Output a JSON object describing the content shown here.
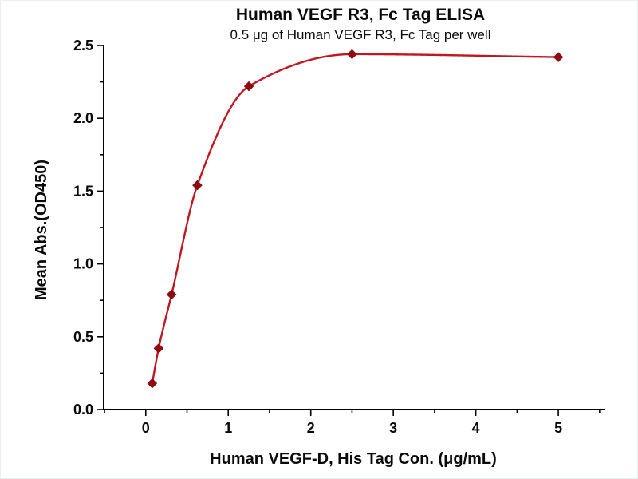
{
  "chart_data": {
    "type": "scatter",
    "title": "Human VEGF R3, Fc Tag ELISA",
    "subtitle": "0.5 μg of Human VEGF R3, Fc Tag per well",
    "xlabel": "Human VEGF-D, His Tag Con. (μg/mL)",
    "ylabel": "Mean Abs.(OD450)",
    "x": [
      0.078,
      0.156,
      0.313,
      0.625,
      1.25,
      2.5,
      5
    ],
    "y": [
      0.18,
      0.42,
      0.79,
      1.54,
      2.22,
      2.44,
      2.42
    ],
    "xlim": [
      -0.51,
      5.55
    ],
    "ylim": [
      0,
      2.5
    ],
    "x_ticks": [
      {
        "v": 0,
        "label": "0"
      },
      {
        "v": 1,
        "label": "1"
      },
      {
        "v": 2,
        "label": "2"
      },
      {
        "v": 3,
        "label": "3"
      },
      {
        "v": 4,
        "label": "4"
      },
      {
        "v": 5,
        "label": "5"
      }
    ],
    "y_ticks": [
      {
        "v": 0.0,
        "label": "0.0"
      },
      {
        "v": 0.5,
        "label": "0.5"
      },
      {
        "v": 1.0,
        "label": "1.0"
      },
      {
        "v": 1.5,
        "label": "1.5"
      },
      {
        "v": 2.0,
        "label": "2.0"
      },
      {
        "v": 2.5,
        "label": "2.5"
      }
    ],
    "x_minor_step": 0.5,
    "y_minor_step": 0.25,
    "grid": false,
    "legend": null,
    "marker_shape": "diamond",
    "colors": {
      "curve": "#c01820",
      "marker": "#8e0b10",
      "axis": "#000000",
      "text": "#0a0a0a"
    }
  }
}
